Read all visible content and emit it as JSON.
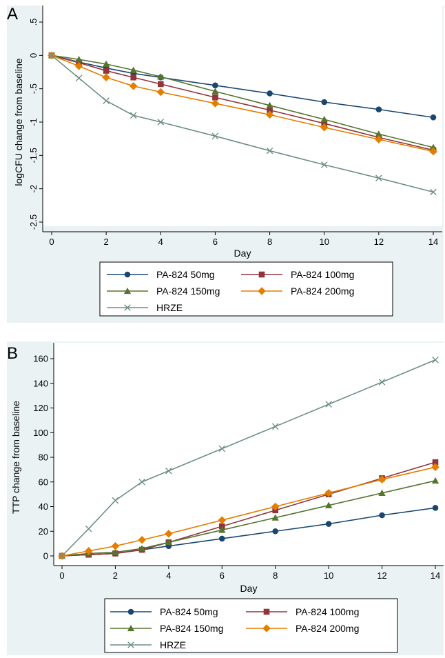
{
  "colors": {
    "PA-824 50mg": "#1a476f",
    "PA-824 100mg": "#90353b",
    "PA-824 150mg": "#55752f",
    "PA-824 200mg": "#e37e00",
    "HRZE": "#6e8e84"
  },
  "markers": {
    "PA-824 50mg": "circle",
    "PA-824 100mg": "square",
    "PA-824 150mg": "triangle",
    "PA-824 200mg": "diamond",
    "HRZE": "x"
  },
  "chart_data": [
    {
      "panel": "A",
      "type": "line",
      "xlabel": "Day",
      "ylabel": "logCFU change from baseline",
      "xlim": [
        0,
        14
      ],
      "ylim": [
        -2.5,
        0.5
      ],
      "xticks": [
        0,
        2,
        4,
        6,
        8,
        10,
        12,
        14
      ],
      "xtick_labels": [
        "0",
        "2",
        "4",
        "6",
        "8",
        "10",
        "12",
        "14"
      ],
      "yticks": [
        0.5,
        0,
        -0.5,
        -1,
        -1.5,
        -2,
        -2.5
      ],
      "ytick_labels": [
        ".5",
        "0",
        "-.5",
        "-1",
        "-1.5",
        "-2",
        "-2.5"
      ],
      "y_tick_labels_rotated": true,
      "grid": false,
      "legend_position": "bottom",
      "series": [
        {
          "name": "PA-824 50mg",
          "x": [
            0,
            1,
            2,
            3,
            4,
            6,
            8,
            10,
            12,
            14
          ],
          "y": [
            0,
            -0.1,
            -0.19,
            -0.27,
            -0.33,
            -0.45,
            -0.57,
            -0.7,
            -0.81,
            -0.93
          ]
        },
        {
          "name": "PA-824 100mg",
          "x": [
            0,
            1,
            2,
            3,
            4,
            6,
            8,
            10,
            12,
            14
          ],
          "y": [
            0,
            -0.11,
            -0.23,
            -0.33,
            -0.43,
            -0.63,
            -0.82,
            -1.02,
            -1.23,
            -1.42
          ]
        },
        {
          "name": "PA-824 150mg",
          "x": [
            0,
            1,
            2,
            3,
            4,
            6,
            8,
            10,
            12,
            14
          ],
          "y": [
            0,
            -0.06,
            -0.13,
            -0.22,
            -0.32,
            -0.54,
            -0.75,
            -0.96,
            -1.18,
            -1.38
          ]
        },
        {
          "name": "PA-824 200mg",
          "x": [
            0,
            1,
            2,
            3,
            4,
            6,
            8,
            10,
            12,
            14
          ],
          "y": [
            0,
            -0.16,
            -0.33,
            -0.46,
            -0.55,
            -0.72,
            -0.89,
            -1.08,
            -1.26,
            -1.44
          ]
        },
        {
          "name": "HRZE",
          "x": [
            0,
            1,
            2,
            3,
            4,
            6,
            8,
            10,
            12,
            14
          ],
          "y": [
            0,
            -0.34,
            -0.68,
            -0.9,
            -1.0,
            -1.21,
            -1.43,
            -1.64,
            -1.84,
            -2.05
          ]
        }
      ]
    },
    {
      "panel": "B",
      "type": "line",
      "xlabel": "Day",
      "ylabel": "TTP change from baseline",
      "xlim": [
        0,
        14
      ],
      "ylim": [
        0,
        160
      ],
      "xticks": [
        0,
        2,
        4,
        6,
        8,
        10,
        12,
        14
      ],
      "xtick_labels": [
        "0",
        "2",
        "4",
        "6",
        "8",
        "10",
        "12",
        "14"
      ],
      "yticks": [
        0,
        20,
        40,
        60,
        80,
        100,
        120,
        140,
        160
      ],
      "ytick_labels": [
        "0",
        "20",
        "40",
        "60",
        "80",
        "100",
        "120",
        "140",
        "160"
      ],
      "y_tick_labels_rotated": false,
      "grid": false,
      "legend_position": "bottom",
      "series": [
        {
          "name": "PA-824 50mg",
          "x": [
            0,
            1,
            2,
            3,
            4,
            6,
            8,
            10,
            12,
            14
          ],
          "y": [
            0,
            1,
            2,
            5,
            8,
            14,
            20,
            26,
            33,
            39
          ]
        },
        {
          "name": "PA-824 100mg",
          "x": [
            0,
            1,
            2,
            3,
            4,
            6,
            8,
            10,
            12,
            14
          ],
          "y": [
            0,
            1,
            2,
            5,
            11,
            24,
            37,
            50,
            63,
            76
          ]
        },
        {
          "name": "PA-824 150mg",
          "x": [
            0,
            1,
            2,
            3,
            4,
            6,
            8,
            10,
            12,
            14
          ],
          "y": [
            0,
            2,
            3,
            6,
            11,
            21,
            31,
            41,
            51,
            61
          ]
        },
        {
          "name": "PA-824 200mg",
          "x": [
            0,
            1,
            2,
            3,
            4,
            6,
            8,
            10,
            12,
            14
          ],
          "y": [
            0,
            4,
            8,
            13,
            18,
            29,
            40,
            51,
            62,
            72
          ]
        },
        {
          "name": "HRZE",
          "x": [
            0,
            1,
            2,
            3,
            4,
            6,
            8,
            10,
            12,
            14
          ],
          "y": [
            0,
            22,
            45,
            60,
            69,
            87,
            105,
            123,
            141,
            159
          ]
        }
      ]
    }
  ]
}
